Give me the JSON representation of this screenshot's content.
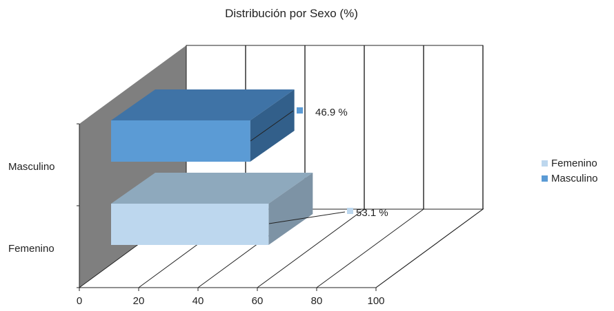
{
  "chart_data": {
    "type": "bar",
    "orientation": "horizontal",
    "title": "Distribución por Sexo (%)",
    "categories": [
      "Femenino",
      "Masculino"
    ],
    "values": [
      53.1,
      46.9
    ],
    "data_labels": [
      "53.1 %",
      "46.9 %"
    ],
    "xlim": [
      0,
      100
    ],
    "xticks": [
      "0",
      "20",
      "40",
      "60",
      "80",
      "100"
    ],
    "xlabel": "",
    "ylabel": "",
    "legend": {
      "position": "right",
      "entries": [
        "Femenino",
        "Masculino"
      ]
    },
    "grid": true,
    "colors": {
      "Femenino": "#bdd7ee",
      "Masculino": "#5b9bd5"
    }
  }
}
